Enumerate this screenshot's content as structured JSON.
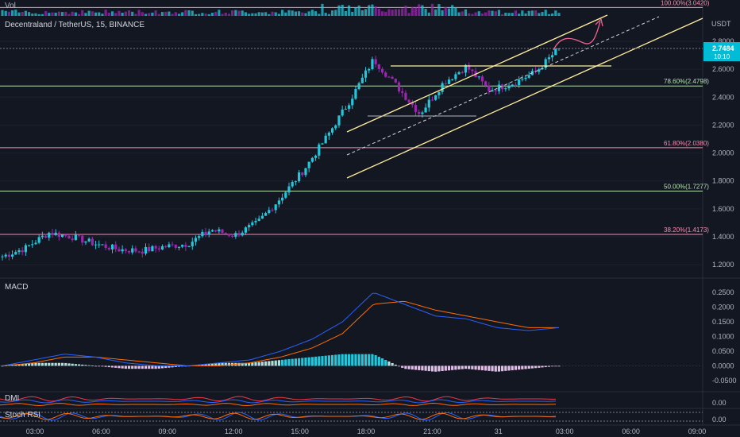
{
  "title": "Decentraland / TetherUS, 15, BINANCE",
  "volume_label": "Vol",
  "currency": "USDT",
  "price_badge": {
    "price": "2.7484",
    "countdown": "10:10"
  },
  "colors": {
    "up": "#26c6da",
    "down": "#9c27b0",
    "bg": "#131722",
    "fib_green": "#b7e0b5",
    "fib_pink": "#f48fb1",
    "channel": "#ffee9a",
    "macd": "#2962ff",
    "signal": "#ff6d00"
  },
  "chart_data": [
    {
      "type": "candlestick",
      "title": "Decentraland / TetherUS, 15, BINANCE",
      "ylim": [
        1.15,
        3.05
      ],
      "y_ticks": [
        1.2,
        1.4,
        1.6,
        1.8,
        2.0,
        2.2,
        2.4,
        2.6,
        2.8
      ],
      "x_ticks": [
        "03:00",
        "06:00",
        "09:00",
        "12:00",
        "15:00",
        "18:00",
        "21:00",
        "31",
        "03:00",
        "06:00",
        "09:00"
      ],
      "anchor_prices": [
        1.26,
        1.32,
        1.43,
        1.4,
        1.35,
        1.31,
        1.3,
        1.33,
        1.35,
        1.45,
        1.41,
        1.5,
        1.68,
        1.88,
        2.12,
        2.38,
        2.67,
        2.48,
        2.28,
        2.5,
        2.62,
        2.45,
        2.5,
        2.58,
        2.75
      ],
      "fib_levels": [
        {
          "label": "100.00%(3.0420)",
          "value": 3.042,
          "color": "pink"
        },
        {
          "label": "78.60%(2.4798)",
          "value": 2.4798,
          "color": "green"
        },
        {
          "label": "61.80%(2.0380)",
          "value": 2.038,
          "color": "pink"
        },
        {
          "label": "50.00%(1.7277)",
          "value": 1.7277,
          "color": "green"
        },
        {
          "label": "38.20%(1.4173)",
          "value": 1.4173,
          "color": "pink"
        }
      ],
      "last_price": 2.7484
    },
    {
      "type": "bar",
      "title": "MACD",
      "ylim": [
        -0.08,
        0.28
      ],
      "y_ticks": [
        "0.2500",
        "0.2000",
        "0.1500",
        "0.1000",
        "0.0500",
        "0.0000",
        "-0.0500"
      ],
      "macd": [
        0.0,
        0.02,
        0.04,
        0.03,
        0.01,
        0.0,
        0.0,
        0.01,
        0.02,
        0.05,
        0.09,
        0.15,
        0.25,
        0.21,
        0.17,
        0.16,
        0.13,
        0.12,
        0.13
      ],
      "signal": [
        0.0,
        0.01,
        0.03,
        0.03,
        0.02,
        0.01,
        0.0,
        0.0,
        0.01,
        0.03,
        0.06,
        0.11,
        0.21,
        0.22,
        0.19,
        0.17,
        0.15,
        0.13,
        0.13
      ]
    },
    {
      "type": "line",
      "title": "DMI",
      "y_ticks": [
        "0.00"
      ]
    },
    {
      "type": "line",
      "title": "Stoch RSI",
      "y_ticks": [
        "0.00"
      ]
    }
  ]
}
